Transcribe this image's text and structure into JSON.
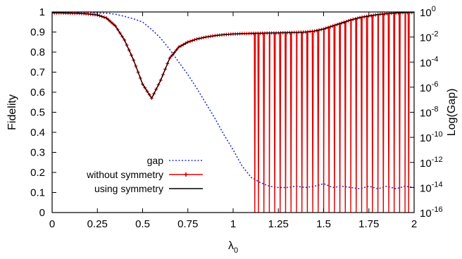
{
  "chart_data": {
    "type": "line",
    "xlabel": "λ",
    "xlabel_sub": "0",
    "ylabel_left": "Fidelity",
    "ylabel_right": "Log(Gap)",
    "xlim": [
      0,
      2
    ],
    "ylim_left": [
      0,
      1
    ],
    "ylim_right_log10": [
      -16,
      0
    ],
    "x_ticks": [
      "0",
      "0.25",
      "0.5",
      "0.75",
      "1",
      "1.25",
      "1.5",
      "1.75",
      "2"
    ],
    "y_ticks_left": [
      "0",
      "0.1",
      "0.2",
      "0.3",
      "0.4",
      "0.5",
      "0.6",
      "0.7",
      "0.8",
      "0.9",
      "1"
    ],
    "y_ticks_right": [
      {
        "base": "10",
        "exp": "-16"
      },
      {
        "base": "10",
        "exp": "-14"
      },
      {
        "base": "10",
        "exp": "-12"
      },
      {
        "base": "10",
        "exp": "-10"
      },
      {
        "base": "10",
        "exp": "-8"
      },
      {
        "base": "10",
        "exp": "-6"
      },
      {
        "base": "10",
        "exp": "-4"
      },
      {
        "base": "10",
        "exp": "-2"
      },
      {
        "base": "10",
        "exp": "0"
      }
    ],
    "legend_position": "bottom-left",
    "colors": {
      "gap": "#2233cc",
      "without": "#e00000",
      "using": "#000000"
    },
    "series": [
      {
        "name": "gap",
        "axis": "right",
        "style": "dotted",
        "x": [
          0,
          0.1,
          0.2,
          0.3,
          0.35,
          0.4,
          0.45,
          0.5,
          0.55,
          0.6,
          0.65,
          0.7,
          0.75,
          0.8,
          0.85,
          0.9,
          0.95,
          1.0,
          1.05,
          1.1,
          1.15,
          1.2,
          1.25,
          1.3,
          1.35,
          1.4,
          1.45,
          1.5,
          1.55,
          1.6,
          1.65,
          1.7,
          1.75,
          1.8,
          1.85,
          1.9,
          1.95,
          2.0
        ],
        "y_log10": [
          -0.02,
          -0.03,
          -0.05,
          -0.1,
          -0.18,
          -0.35,
          -0.55,
          -0.8,
          -1.4,
          -2.1,
          -3.0,
          -4.0,
          -5.0,
          -6.1,
          -7.3,
          -8.5,
          -9.8,
          -11.0,
          -12.3,
          -13.2,
          -13.6,
          -13.9,
          -14.0,
          -14.0,
          -13.9,
          -14.0,
          -13.9,
          -13.7,
          -14.0,
          -13.9,
          -14.0,
          -14.1,
          -13.9,
          -14.1,
          -13.9,
          -14.1,
          -13.9,
          -14.0
        ]
      },
      {
        "name": "without symmetry",
        "axis": "left",
        "style": "solid-markers",
        "x": [
          0,
          0.05,
          0.1,
          0.15,
          0.2,
          0.25,
          0.3,
          0.35,
          0.4,
          0.45,
          0.5,
          0.55,
          0.6,
          0.65,
          0.7,
          0.75,
          0.8,
          0.85,
          0.9,
          0.95,
          1.0,
          1.05,
          1.1,
          1.15,
          1.2,
          1.25,
          1.3,
          1.35,
          1.4,
          1.45,
          1.5,
          1.55,
          1.6,
          1.65,
          1.7,
          1.75,
          1.8,
          1.85,
          1.9,
          1.95,
          2.0
        ],
        "y": [
          0.995,
          0.995,
          0.994,
          0.993,
          0.99,
          0.985,
          0.97,
          0.93,
          0.86,
          0.76,
          0.64,
          0.57,
          0.66,
          0.77,
          0.825,
          0.85,
          0.865,
          0.875,
          0.882,
          0.887,
          0.89,
          0.892,
          0.893,
          0.894,
          0.895,
          0.896,
          0.897,
          0.898,
          0.9,
          0.905,
          0.915,
          0.93,
          0.945,
          0.96,
          0.972,
          0.98,
          0.987,
          0.992,
          0.995,
          0.997,
          0.998
        ],
        "drops_to_zero_at_x": [
          1.12,
          1.14,
          1.17,
          1.2,
          1.23,
          1.26,
          1.29,
          1.32,
          1.35,
          1.38,
          1.41,
          1.44,
          1.47,
          1.5,
          1.53,
          1.56,
          1.59,
          1.62,
          1.65,
          1.68,
          1.71,
          1.74,
          1.77,
          1.8,
          1.83,
          1.86,
          1.89,
          1.92,
          1.95,
          1.97
        ]
      },
      {
        "name": "using symmetry",
        "axis": "left",
        "style": "solid",
        "x": [
          0,
          0.05,
          0.1,
          0.15,
          0.2,
          0.25,
          0.3,
          0.35,
          0.4,
          0.45,
          0.5,
          0.55,
          0.6,
          0.65,
          0.7,
          0.75,
          0.8,
          0.85,
          0.9,
          0.95,
          1.0,
          1.05,
          1.1,
          1.15,
          1.2,
          1.25,
          1.3,
          1.35,
          1.4,
          1.45,
          1.5,
          1.55,
          1.6,
          1.65,
          1.7,
          1.75,
          1.8,
          1.85,
          1.9,
          1.95,
          2.0
        ],
        "y": [
          0.995,
          0.995,
          0.994,
          0.993,
          0.99,
          0.985,
          0.97,
          0.93,
          0.86,
          0.76,
          0.64,
          0.57,
          0.66,
          0.77,
          0.825,
          0.85,
          0.865,
          0.875,
          0.882,
          0.887,
          0.89,
          0.892,
          0.893,
          0.894,
          0.895,
          0.896,
          0.897,
          0.898,
          0.9,
          0.905,
          0.915,
          0.93,
          0.945,
          0.96,
          0.972,
          0.98,
          0.987,
          0.992,
          0.995,
          0.997,
          0.998
        ]
      }
    ]
  }
}
